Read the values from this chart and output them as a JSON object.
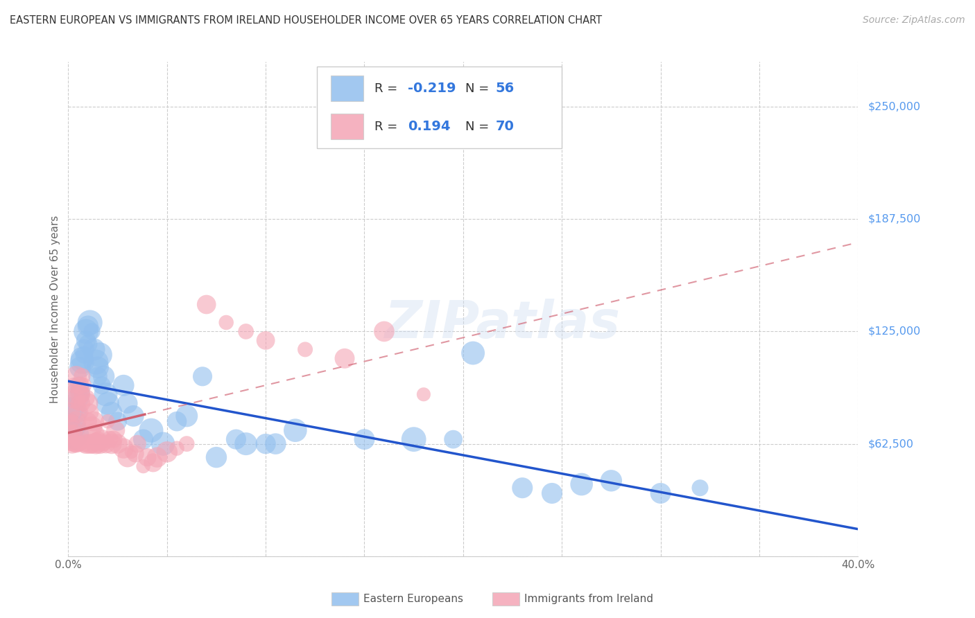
{
  "title": "EASTERN EUROPEAN VS IMMIGRANTS FROM IRELAND HOUSEHOLDER INCOME OVER 65 YEARS CORRELATION CHART",
  "source": "Source: ZipAtlas.com",
  "ylabel": "Householder Income Over 65 years",
  "xlim": [
    0.0,
    0.4
  ],
  "ylim": [
    0,
    275000
  ],
  "ytick_positions": [
    0,
    62500,
    125000,
    187500,
    250000
  ],
  "ytick_labels_right": [
    "",
    "$62,500",
    "$125,000",
    "$187,500",
    "$250,000"
  ],
  "grid_color": "#cccccc",
  "background_color": "#ffffff",
  "watermark": "ZIPatlas",
  "blue_color": "#92bfee",
  "pink_color": "#f4a5b5",
  "blue_trend_color": "#2255cc",
  "pink_trend_color": "#d06070",
  "blue_R": -0.219,
  "blue_N": 56,
  "pink_R": 0.194,
  "pink_N": 70,
  "legend_blue_label": "Eastern Europeans",
  "legend_pink_label": "Immigrants from Ireland",
  "blue_points": [
    [
      0.001,
      75000
    ],
    [
      0.002,
      82000
    ],
    [
      0.003,
      65000
    ],
    [
      0.003,
      72000
    ],
    [
      0.004,
      68000
    ],
    [
      0.004,
      80000
    ],
    [
      0.005,
      88000
    ],
    [
      0.005,
      95000
    ],
    [
      0.006,
      92000
    ],
    [
      0.006,
      105000
    ],
    [
      0.007,
      110000
    ],
    [
      0.007,
      108000
    ],
    [
      0.008,
      115000
    ],
    [
      0.008,
      112000
    ],
    [
      0.009,
      120000
    ],
    [
      0.009,
      125000
    ],
    [
      0.01,
      118000
    ],
    [
      0.01,
      128000
    ],
    [
      0.011,
      130000
    ],
    [
      0.012,
      125000
    ],
    [
      0.013,
      115000
    ],
    [
      0.014,
      108000
    ],
    [
      0.015,
      100000
    ],
    [
      0.015,
      105000
    ],
    [
      0.016,
      112000
    ],
    [
      0.017,
      95000
    ],
    [
      0.018,
      100000
    ],
    [
      0.019,
      90000
    ],
    [
      0.02,
      85000
    ],
    [
      0.022,
      80000
    ],
    [
      0.025,
      75000
    ],
    [
      0.028,
      95000
    ],
    [
      0.03,
      85000
    ],
    [
      0.033,
      78000
    ],
    [
      0.038,
      65000
    ],
    [
      0.042,
      70000
    ],
    [
      0.048,
      62500
    ],
    [
      0.055,
      75000
    ],
    [
      0.06,
      78000
    ],
    [
      0.068,
      100000
    ],
    [
      0.075,
      55000
    ],
    [
      0.085,
      65000
    ],
    [
      0.09,
      62500
    ],
    [
      0.1,
      62500
    ],
    [
      0.105,
      62500
    ],
    [
      0.115,
      70000
    ],
    [
      0.15,
      65000
    ],
    [
      0.175,
      65000
    ],
    [
      0.195,
      65000
    ],
    [
      0.205,
      113000
    ],
    [
      0.23,
      38000
    ],
    [
      0.245,
      35000
    ],
    [
      0.26,
      40000
    ],
    [
      0.275,
      42000
    ],
    [
      0.3,
      35000
    ],
    [
      0.32,
      38000
    ]
  ],
  "pink_points": [
    [
      0.001,
      62500
    ],
    [
      0.001,
      80000
    ],
    [
      0.001,
      68000
    ],
    [
      0.002,
      62500
    ],
    [
      0.002,
      70000
    ],
    [
      0.002,
      90000
    ],
    [
      0.002,
      75000
    ],
    [
      0.003,
      62500
    ],
    [
      0.003,
      68000
    ],
    [
      0.003,
      95000
    ],
    [
      0.003,
      88000
    ],
    [
      0.004,
      100000
    ],
    [
      0.004,
      75000
    ],
    [
      0.004,
      62500
    ],
    [
      0.005,
      80000
    ],
    [
      0.005,
      85000
    ],
    [
      0.005,
      62500
    ],
    [
      0.005,
      65000
    ],
    [
      0.006,
      90000
    ],
    [
      0.006,
      95000
    ],
    [
      0.006,
      62500
    ],
    [
      0.007,
      100000
    ],
    [
      0.007,
      85000
    ],
    [
      0.007,
      90000
    ],
    [
      0.008,
      95000
    ],
    [
      0.008,
      62500
    ],
    [
      0.009,
      88000
    ],
    [
      0.009,
      62500
    ],
    [
      0.01,
      85000
    ],
    [
      0.01,
      75000
    ],
    [
      0.011,
      80000
    ],
    [
      0.011,
      62500
    ],
    [
      0.012,
      72000
    ],
    [
      0.012,
      62500
    ],
    [
      0.013,
      75000
    ],
    [
      0.013,
      68000
    ],
    [
      0.014,
      65000
    ],
    [
      0.014,
      62500
    ],
    [
      0.015,
      65000
    ],
    [
      0.015,
      62500
    ],
    [
      0.016,
      62500
    ],
    [
      0.017,
      65000
    ],
    [
      0.018,
      62500
    ],
    [
      0.019,
      62500
    ],
    [
      0.02,
      75000
    ],
    [
      0.021,
      65000
    ],
    [
      0.022,
      62500
    ],
    [
      0.023,
      65000
    ],
    [
      0.024,
      70000
    ],
    [
      0.025,
      62500
    ],
    [
      0.028,
      60000
    ],
    [
      0.03,
      55000
    ],
    [
      0.032,
      58000
    ],
    [
      0.034,
      57000
    ],
    [
      0.035,
      62500
    ],
    [
      0.038,
      50000
    ],
    [
      0.04,
      55000
    ],
    [
      0.043,
      52000
    ],
    [
      0.045,
      55000
    ],
    [
      0.05,
      58000
    ],
    [
      0.055,
      60000
    ],
    [
      0.06,
      62500
    ],
    [
      0.07,
      140000
    ],
    [
      0.08,
      130000
    ],
    [
      0.09,
      125000
    ],
    [
      0.1,
      120000
    ],
    [
      0.12,
      115000
    ],
    [
      0.14,
      110000
    ],
    [
      0.16,
      125000
    ],
    [
      0.18,
      90000
    ]
  ]
}
